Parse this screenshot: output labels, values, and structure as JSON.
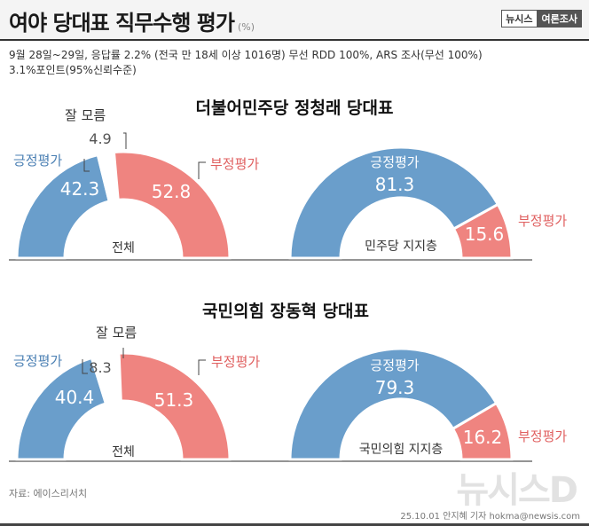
{
  "header": {
    "title": "여야 당대표 직무수행 평가",
    "unit": "(%)",
    "brand_1": "뉴시스",
    "brand_2": "여론조사"
  },
  "notes": {
    "line1": "9월 28일~29일, 응답률 2.2% (전국 만 18세 이상 1016명) 무선 RDD 100%, ARS 조사(무선 100%)",
    "line2": "3.1%포인트(95%신뢰수준)"
  },
  "chart_data": [
    {
      "type": "pie",
      "variant": "half-donut",
      "section_title": "더불어민주당 정청래 당대표",
      "center_label": "전체",
      "slices": [
        {
          "label": "긍정평가",
          "value": 42.3,
          "color": "#6a9ecb"
        },
        {
          "label": "잘 모름",
          "value": 4.9,
          "color": "#ffffff"
        },
        {
          "label": "부정평가",
          "value": 52.8,
          "color": "#ef8480"
        }
      ]
    },
    {
      "type": "pie",
      "variant": "half-donut",
      "center_label": "민주당 지지층",
      "slices": [
        {
          "label": "긍정평가",
          "value": 81.3,
          "color": "#6a9ecb"
        },
        {
          "label": "부정평가",
          "value": 15.6,
          "color": "#ef8480"
        }
      ]
    },
    {
      "type": "pie",
      "variant": "half-donut",
      "section_title": "국민의힘 장동혁 당대표",
      "center_label": "전체",
      "slices": [
        {
          "label": "긍정평가",
          "value": 40.4,
          "color": "#6a9ecb"
        },
        {
          "label": "잘 모름",
          "value": 8.3,
          "color": "#ffffff"
        },
        {
          "label": "부정평가",
          "value": 51.3,
          "color": "#ef8480"
        }
      ]
    },
    {
      "type": "pie",
      "variant": "half-donut",
      "center_label": "국민의힘 지지층",
      "slices": [
        {
          "label": "긍정평가",
          "value": 79.3,
          "color": "#6a9ecb"
        },
        {
          "label": "부정평가",
          "value": 16.2,
          "color": "#ef8480"
        }
      ]
    }
  ],
  "footer": {
    "source": "자료: 에이스리서치",
    "watermark": "뉴시스D",
    "credit": "25.10.01 안지혜 기자 hokma@newsis.com"
  }
}
